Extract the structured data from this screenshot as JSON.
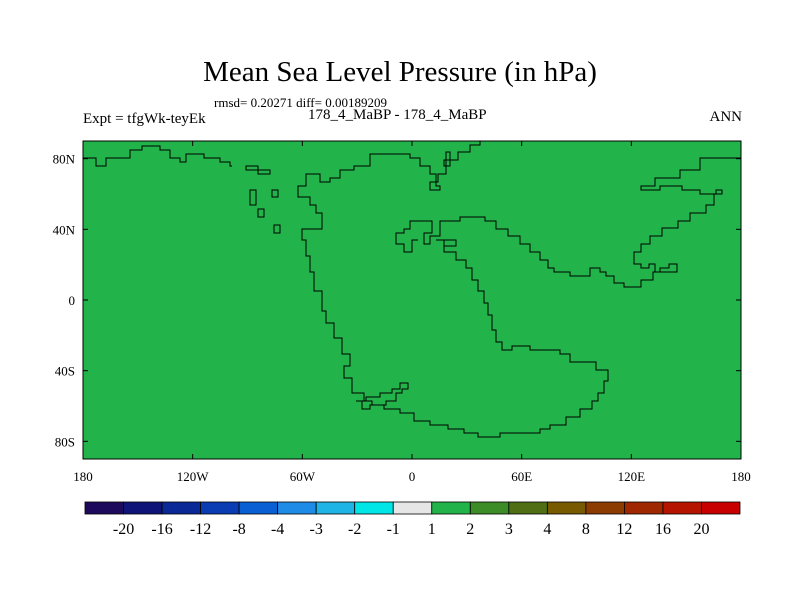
{
  "title": "Mean Sea Level Pressure (in hPa)",
  "stats": "rmsd= 0.20271 diff= 0.00189209",
  "experiment": "Expt = tfgWk-teyEk",
  "case_label": "178_4_MaBP - 178_4_MaBP",
  "season": "ANN",
  "map": {
    "field_color": "#22b34a",
    "lon_range": [
      -180,
      180
    ],
    "lat_range": [
      -90,
      90
    ],
    "lon_ticks": [
      {
        "value": -180,
        "label": "180"
      },
      {
        "value": -120,
        "label": "120W"
      },
      {
        "value": -60,
        "label": "60W"
      },
      {
        "value": 0,
        "label": "0"
      },
      {
        "value": 60,
        "label": "60E"
      },
      {
        "value": 120,
        "label": "120E"
      },
      {
        "value": 180,
        "label": "180"
      }
    ],
    "lat_ticks": [
      {
        "value": 80,
        "label": "80N"
      },
      {
        "value": 40,
        "label": "40N"
      },
      {
        "value": 0,
        "label": "0"
      },
      {
        "value": -40,
        "label": "40S"
      },
      {
        "value": -80,
        "label": "80S"
      }
    ]
  },
  "colorbar": {
    "colors": [
      "#1d0a5c",
      "#0f1478",
      "#0a2896",
      "#0a3cb4",
      "#0a5fd2",
      "#1e8ce6",
      "#1eb4e6",
      "#00e6e6",
      "#e6e6e6",
      "#22b34a",
      "#3c8c28",
      "#506e14",
      "#785a00",
      "#8c3c00",
      "#a02800",
      "#b41400",
      "#c80000"
    ],
    "labels": [
      "-20",
      "-16",
      "-12",
      "-8",
      "-4",
      "-3",
      "-2",
      "-1",
      "1",
      "2",
      "3",
      "4",
      "8",
      "12",
      "16",
      "20"
    ]
  }
}
